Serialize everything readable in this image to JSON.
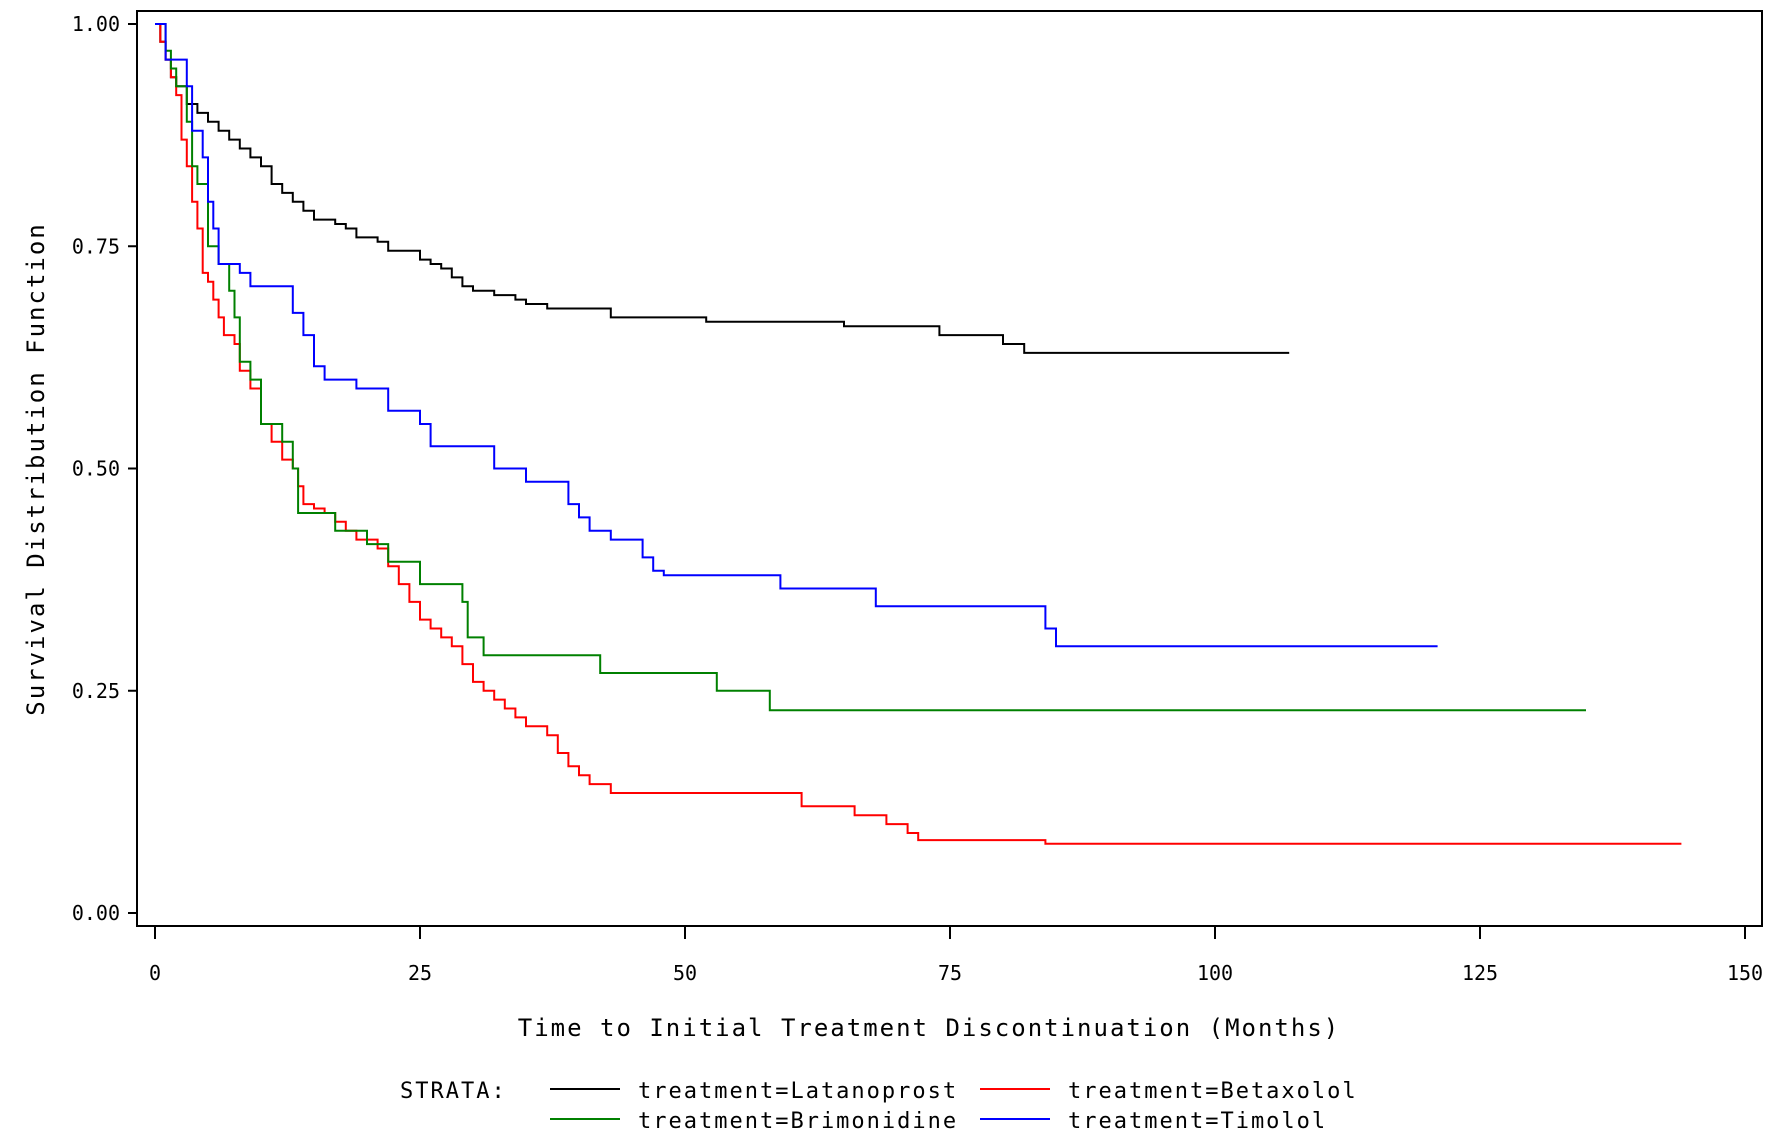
{
  "chart_data": {
    "type": "line",
    "step": true,
    "xlabel": "Time to Initial Treatment Discontinuation (Months)",
    "ylabel": "Survival Distribution Function",
    "xlim": [
      0,
      150
    ],
    "ylim": [
      0,
      1
    ],
    "x_ticks": [
      "0",
      "25",
      "50",
      "75",
      "100",
      "125",
      "150"
    ],
    "y_ticks": [
      "0.00",
      "0.25",
      "0.50",
      "0.75",
      "1.00"
    ],
    "grid": false,
    "legend": {
      "title": "STRATA:",
      "position": "bottom",
      "entries": [
        "treatment=Latanoprost",
        "treatment=Betaxolol",
        "treatment=Brimonidine",
        "treatment=Timolol"
      ]
    },
    "series": [
      {
        "name": "treatment=Latanoprost",
        "color": "#000000",
        "points": [
          [
            0,
            1.0
          ],
          [
            0.5,
            0.98
          ],
          [
            1,
            0.96
          ],
          [
            1.5,
            0.94
          ],
          [
            2,
            0.93
          ],
          [
            3,
            0.91
          ],
          [
            4,
            0.9
          ],
          [
            5,
            0.89
          ],
          [
            6,
            0.88
          ],
          [
            7,
            0.87
          ],
          [
            8,
            0.86
          ],
          [
            9,
            0.85
          ],
          [
            10,
            0.84
          ],
          [
            11,
            0.82
          ],
          [
            12,
            0.81
          ],
          [
            13,
            0.8
          ],
          [
            14,
            0.79
          ],
          [
            15,
            0.78
          ],
          [
            17,
            0.775
          ],
          [
            18,
            0.77
          ],
          [
            19,
            0.76
          ],
          [
            21,
            0.755
          ],
          [
            22,
            0.745
          ],
          [
            25,
            0.735
          ],
          [
            26,
            0.73
          ],
          [
            27,
            0.725
          ],
          [
            28,
            0.715
          ],
          [
            29,
            0.705
          ],
          [
            30,
            0.7
          ],
          [
            32,
            0.695
          ],
          [
            34,
            0.69
          ],
          [
            35,
            0.685
          ],
          [
            37,
            0.68
          ],
          [
            43,
            0.67
          ],
          [
            52,
            0.665
          ],
          [
            65,
            0.66
          ],
          [
            74,
            0.65
          ],
          [
            80,
            0.64
          ],
          [
            82,
            0.63
          ],
          [
            107,
            0.63
          ]
        ]
      },
      {
        "name": "treatment=Betaxolol",
        "color": "#ff0000",
        "points": [
          [
            0,
            1.0
          ],
          [
            0.5,
            0.98
          ],
          [
            1,
            0.96
          ],
          [
            1.5,
            0.94
          ],
          [
            2,
            0.92
          ],
          [
            2.5,
            0.87
          ],
          [
            3,
            0.84
          ],
          [
            3.5,
            0.8
          ],
          [
            4,
            0.77
          ],
          [
            4.5,
            0.72
          ],
          [
            5,
            0.71
          ],
          [
            5.5,
            0.69
          ],
          [
            6,
            0.67
          ],
          [
            6.5,
            0.65
          ],
          [
            7.5,
            0.64
          ],
          [
            8,
            0.61
          ],
          [
            9,
            0.59
          ],
          [
            10,
            0.55
          ],
          [
            11,
            0.53
          ],
          [
            12,
            0.51
          ],
          [
            13,
            0.5
          ],
          [
            13.5,
            0.48
          ],
          [
            14,
            0.46
          ],
          [
            15,
            0.455
          ],
          [
            16,
            0.45
          ],
          [
            17,
            0.44
          ],
          [
            18,
            0.43
          ],
          [
            19,
            0.42
          ],
          [
            21,
            0.41
          ],
          [
            22,
            0.39
          ],
          [
            23,
            0.37
          ],
          [
            24,
            0.35
          ],
          [
            25,
            0.33
          ],
          [
            26,
            0.32
          ],
          [
            27,
            0.31
          ],
          [
            28,
            0.3
          ],
          [
            29,
            0.28
          ],
          [
            30,
            0.26
          ],
          [
            31,
            0.25
          ],
          [
            32,
            0.24
          ],
          [
            33,
            0.23
          ],
          [
            34,
            0.22
          ],
          [
            35,
            0.21
          ],
          [
            37,
            0.2
          ],
          [
            38,
            0.18
          ],
          [
            39,
            0.165
          ],
          [
            40,
            0.155
          ],
          [
            41,
            0.145
          ],
          [
            43,
            0.135
          ],
          [
            61,
            0.12
          ],
          [
            66,
            0.11
          ],
          [
            69,
            0.1
          ],
          [
            71,
            0.09
          ],
          [
            72,
            0.082
          ],
          [
            84,
            0.078
          ],
          [
            144,
            0.078
          ]
        ]
      },
      {
        "name": "treatment=Brimonidine",
        "color": "#008000",
        "points": [
          [
            0,
            1.0
          ],
          [
            1,
            0.97
          ],
          [
            1.5,
            0.95
          ],
          [
            2,
            0.93
          ],
          [
            3,
            0.89
          ],
          [
            3.5,
            0.84
          ],
          [
            4,
            0.82
          ],
          [
            5,
            0.75
          ],
          [
            6,
            0.73
          ],
          [
            7,
            0.7
          ],
          [
            7.5,
            0.67
          ],
          [
            8,
            0.62
          ],
          [
            9,
            0.6
          ],
          [
            10,
            0.55
          ],
          [
            12,
            0.53
          ],
          [
            13,
            0.5
          ],
          [
            13.5,
            0.45
          ],
          [
            17,
            0.43
          ],
          [
            20,
            0.415
          ],
          [
            22,
            0.395
          ],
          [
            25,
            0.37
          ],
          [
            29,
            0.35
          ],
          [
            29.5,
            0.31
          ],
          [
            31,
            0.29
          ],
          [
            42,
            0.27
          ],
          [
            53,
            0.25
          ],
          [
            58,
            0.228
          ],
          [
            135,
            0.228
          ]
        ]
      },
      {
        "name": "treatment=Timolol",
        "color": "#0000ff",
        "points": [
          [
            0,
            1.0
          ],
          [
            1,
            0.96
          ],
          [
            3,
            0.93
          ],
          [
            3.5,
            0.88
          ],
          [
            4.5,
            0.85
          ],
          [
            5,
            0.8
          ],
          [
            5.5,
            0.77
          ],
          [
            6,
            0.73
          ],
          [
            8,
            0.72
          ],
          [
            9,
            0.705
          ],
          [
            13,
            0.675
          ],
          [
            14,
            0.65
          ],
          [
            15,
            0.615
          ],
          [
            16,
            0.6
          ],
          [
            19,
            0.59
          ],
          [
            22,
            0.565
          ],
          [
            25,
            0.55
          ],
          [
            26,
            0.525
          ],
          [
            32,
            0.5
          ],
          [
            35,
            0.485
          ],
          [
            39,
            0.46
          ],
          [
            40,
            0.445
          ],
          [
            41,
            0.43
          ],
          [
            43,
            0.42
          ],
          [
            46,
            0.4
          ],
          [
            47,
            0.385
          ],
          [
            48,
            0.38
          ],
          [
            59,
            0.365
          ],
          [
            68,
            0.345
          ],
          [
            84,
            0.32
          ],
          [
            85,
            0.3
          ],
          [
            121,
            0.3
          ]
        ]
      }
    ]
  }
}
